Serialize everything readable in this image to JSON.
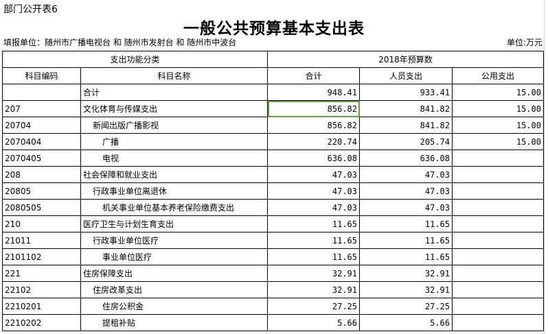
{
  "sheet": {
    "code": "部门公开表6",
    "title": "一般公共预算基本支出表",
    "unit_left": "填报单位：随州市广播电视台 和 随州市发射台 和 随州市中波台",
    "unit_right": "单位:万元",
    "header": {
      "group1": "支出功能分类",
      "group2": "2018年预算数",
      "col_code": "科目编码",
      "col_name": "科目名称",
      "col_total": "合计",
      "col_personnel": "人员支出",
      "col_public": "公用支出"
    },
    "rows": [
      {
        "code": "",
        "name": "合计",
        "indent": 0,
        "total": "948.41",
        "personnel": "933.41",
        "public": "15.00"
      },
      {
        "code": "207",
        "name": "文化体育与传媒支出",
        "indent": 0,
        "total": "856.82",
        "personnel": "841.82",
        "public": "15.00"
      },
      {
        "code": "20704",
        "name": "新闻出版广播影视",
        "indent": 1,
        "total": "856.82",
        "personnel": "841.82",
        "public": "15.00"
      },
      {
        "code": "2070404",
        "name": "广播",
        "indent": 2,
        "total": "220.74",
        "personnel": "205.74",
        "public": "15.00"
      },
      {
        "code": "2070405",
        "name": "电视",
        "indent": 2,
        "total": "636.08",
        "personnel": "636.08",
        "public": ""
      },
      {
        "code": "208",
        "name": "社会保障和就业支出",
        "indent": 0,
        "total": "47.03",
        "personnel": "47.03",
        "public": ""
      },
      {
        "code": "20805",
        "name": "行政事业单位离退休",
        "indent": 1,
        "total": "47.03",
        "personnel": "47.03",
        "public": ""
      },
      {
        "code": "2080505",
        "name": "机关事业单位基本养老保险缴费支出",
        "indent": 2,
        "total": "47.03",
        "personnel": "47.03",
        "public": ""
      },
      {
        "code": "210",
        "name": "医疗卫生与计划生育支出",
        "indent": 0,
        "total": "11.65",
        "personnel": "11.65",
        "public": ""
      },
      {
        "code": "21011",
        "name": "行政事业单位医疗",
        "indent": 1,
        "total": "11.65",
        "personnel": "11.65",
        "public": ""
      },
      {
        "code": "2101102",
        "name": "事业单位医疗",
        "indent": 2,
        "total": "11.65",
        "personnel": "11.65",
        "public": ""
      },
      {
        "code": "221",
        "name": "住房保障支出",
        "indent": 0,
        "total": "32.91",
        "personnel": "32.91",
        "public": ""
      },
      {
        "code": "22102",
        "name": "住房改革支出",
        "indent": 1,
        "total": "32.91",
        "personnel": "32.91",
        "public": ""
      },
      {
        "code": "2210201",
        "name": "住房公积金",
        "indent": 2,
        "total": "27.25",
        "personnel": "27.25",
        "public": ""
      },
      {
        "code": "2210202",
        "name": "提租补贴",
        "indent": 2,
        "total": "5.66",
        "personnel": "5.66",
        "public": ""
      }
    ],
    "selection_color": "#5fa13a"
  }
}
